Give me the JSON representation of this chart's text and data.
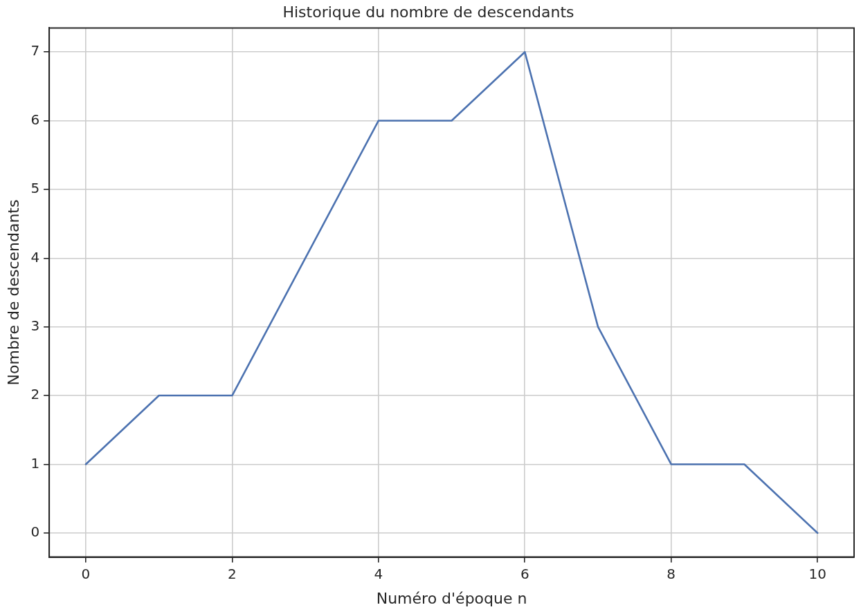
{
  "chart_data": {
    "type": "line",
    "title": "Historique du nombre de descendants",
    "xlabel": "Numéro d'époque n",
    "ylabel": "Nombre de descendants",
    "x": [
      0,
      1,
      2,
      3,
      4,
      5,
      6,
      7,
      8,
      9,
      10
    ],
    "series": [
      {
        "color": "#4c72b0",
        "values": [
          1,
          2,
          2,
          4,
          6,
          6,
          7,
          3,
          1,
          1,
          0
        ]
      }
    ],
    "xlim": [
      -0.5,
      10.5
    ],
    "ylim": [
      -0.35,
      7.35
    ],
    "xticks": [
      0,
      2,
      4,
      6,
      8,
      10
    ],
    "yticks": [
      0,
      1,
      2,
      3,
      4,
      5,
      6,
      7
    ],
    "grid": true,
    "legend": false,
    "marker": "none",
    "line_style": "solid"
  }
}
